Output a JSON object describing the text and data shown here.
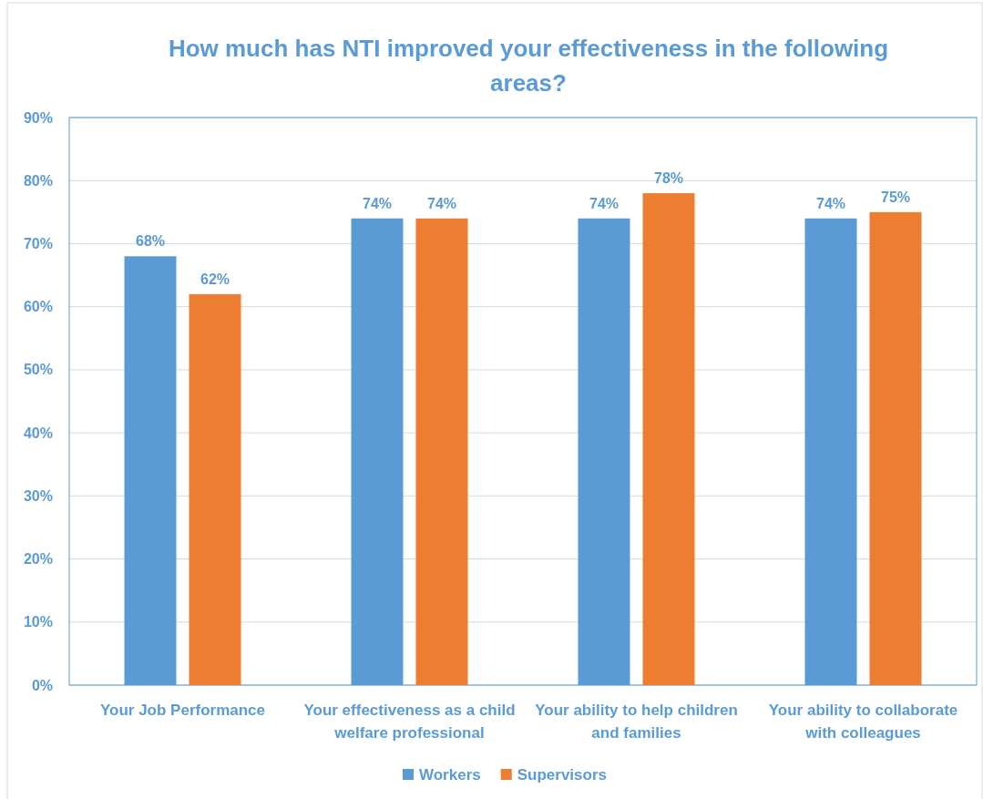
{
  "chart_data": {
    "type": "bar",
    "title": "How much has NTI improved your effectiveness in the following areas?",
    "categories": [
      "Your Job Performance",
      "Your effectiveness as a child welfare professional",
      "Your ability to help children and families",
      "Your ability to collaborate with colleagues"
    ],
    "series": [
      {
        "name": "Workers",
        "color": "#5b9bd5",
        "values": [
          68,
          74,
          74,
          74
        ],
        "value_labels": [
          "68%",
          "74%",
          "74%",
          "74%"
        ]
      },
      {
        "name": "Supervisors",
        "color": "#ed7d31",
        "values": [
          62,
          74,
          78,
          75
        ],
        "value_labels": [
          "62%",
          "74%",
          "78%",
          "75%"
        ]
      }
    ],
    "ylim": [
      0,
      90
    ],
    "yticks": [
      {
        "value": 0,
        "label": "0%"
      },
      {
        "value": 10,
        "label": "10%"
      },
      {
        "value": 20,
        "label": "20%"
      },
      {
        "value": 30,
        "label": "30%"
      },
      {
        "value": 40,
        "label": "40%"
      },
      {
        "value": 50,
        "label": "50%"
      },
      {
        "value": 60,
        "label": "60%"
      },
      {
        "value": 70,
        "label": "70%"
      },
      {
        "value": 80,
        "label": "80%"
      },
      {
        "value": 90,
        "label": "90%"
      }
    ],
    "grid": "y",
    "legend": "bottom"
  }
}
